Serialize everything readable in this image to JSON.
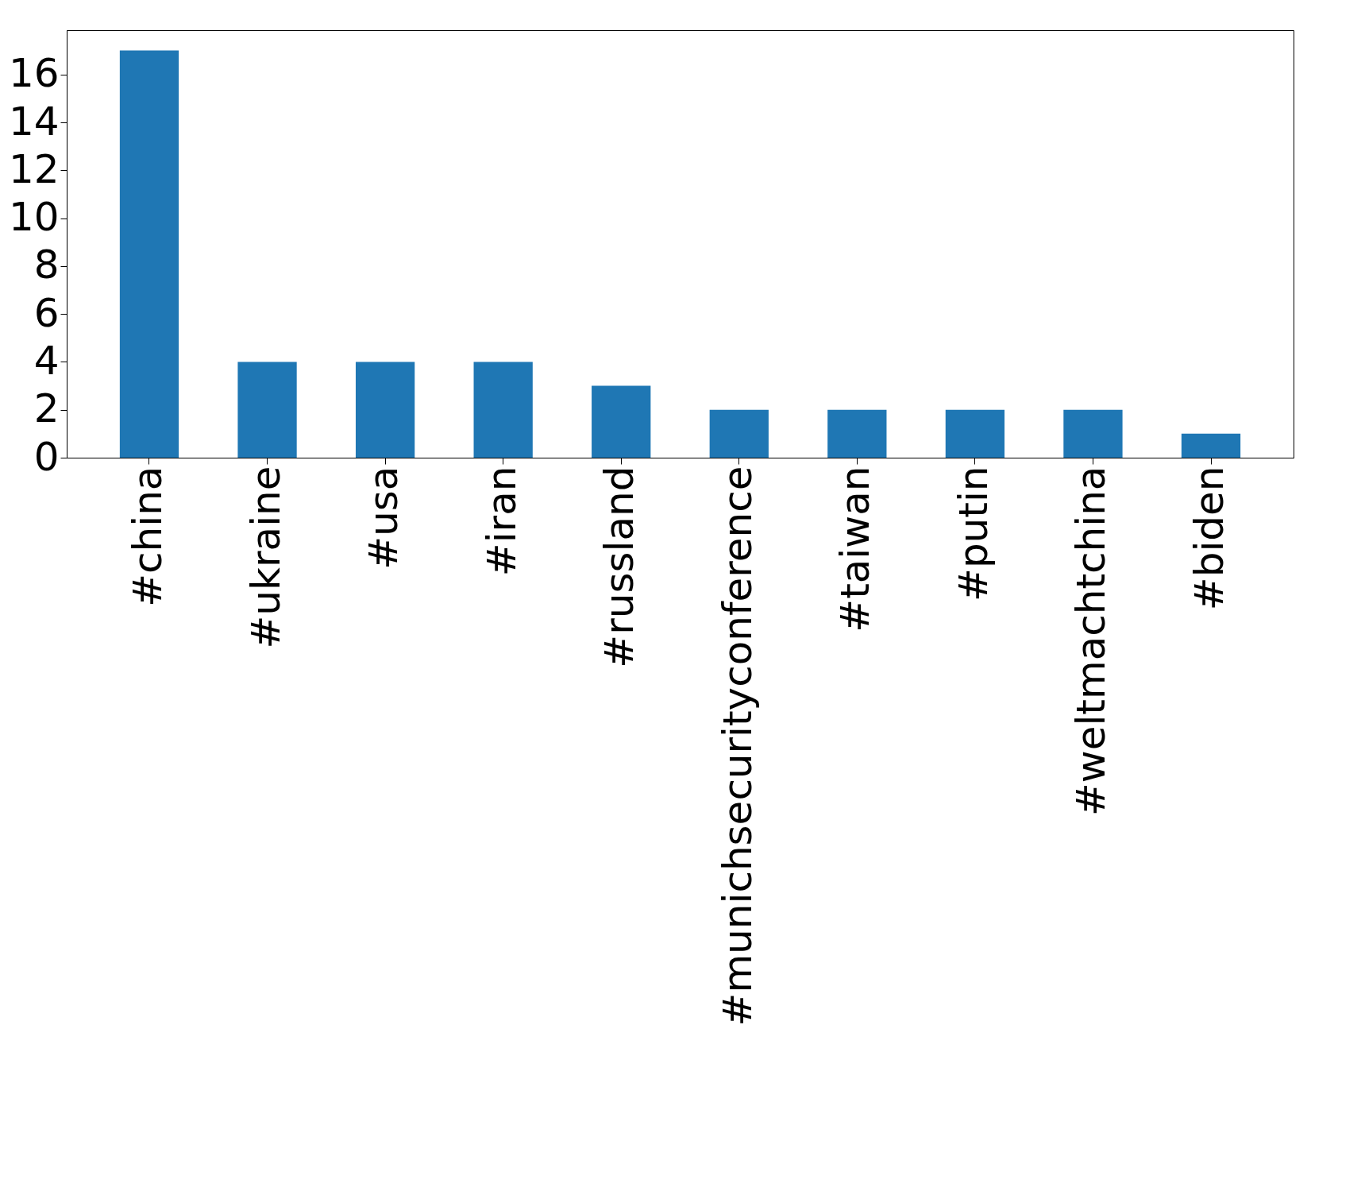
{
  "chart_data": {
    "type": "bar",
    "categories": [
      "#china",
      "#ukraine",
      "#usa",
      "#iran",
      "#russland",
      "#munichsecurityconference",
      "#taiwan",
      "#putin",
      "#weltmachtchina",
      "#biden"
    ],
    "values": [
      17,
      4,
      4,
      4,
      3,
      2,
      2,
      2,
      2,
      1
    ],
    "color": "#1f77b4",
    "ylim": [
      0,
      17.85
    ],
    "yticks": [
      0,
      2,
      4,
      6,
      8,
      10,
      12,
      14,
      16
    ],
    "grid": false
  }
}
